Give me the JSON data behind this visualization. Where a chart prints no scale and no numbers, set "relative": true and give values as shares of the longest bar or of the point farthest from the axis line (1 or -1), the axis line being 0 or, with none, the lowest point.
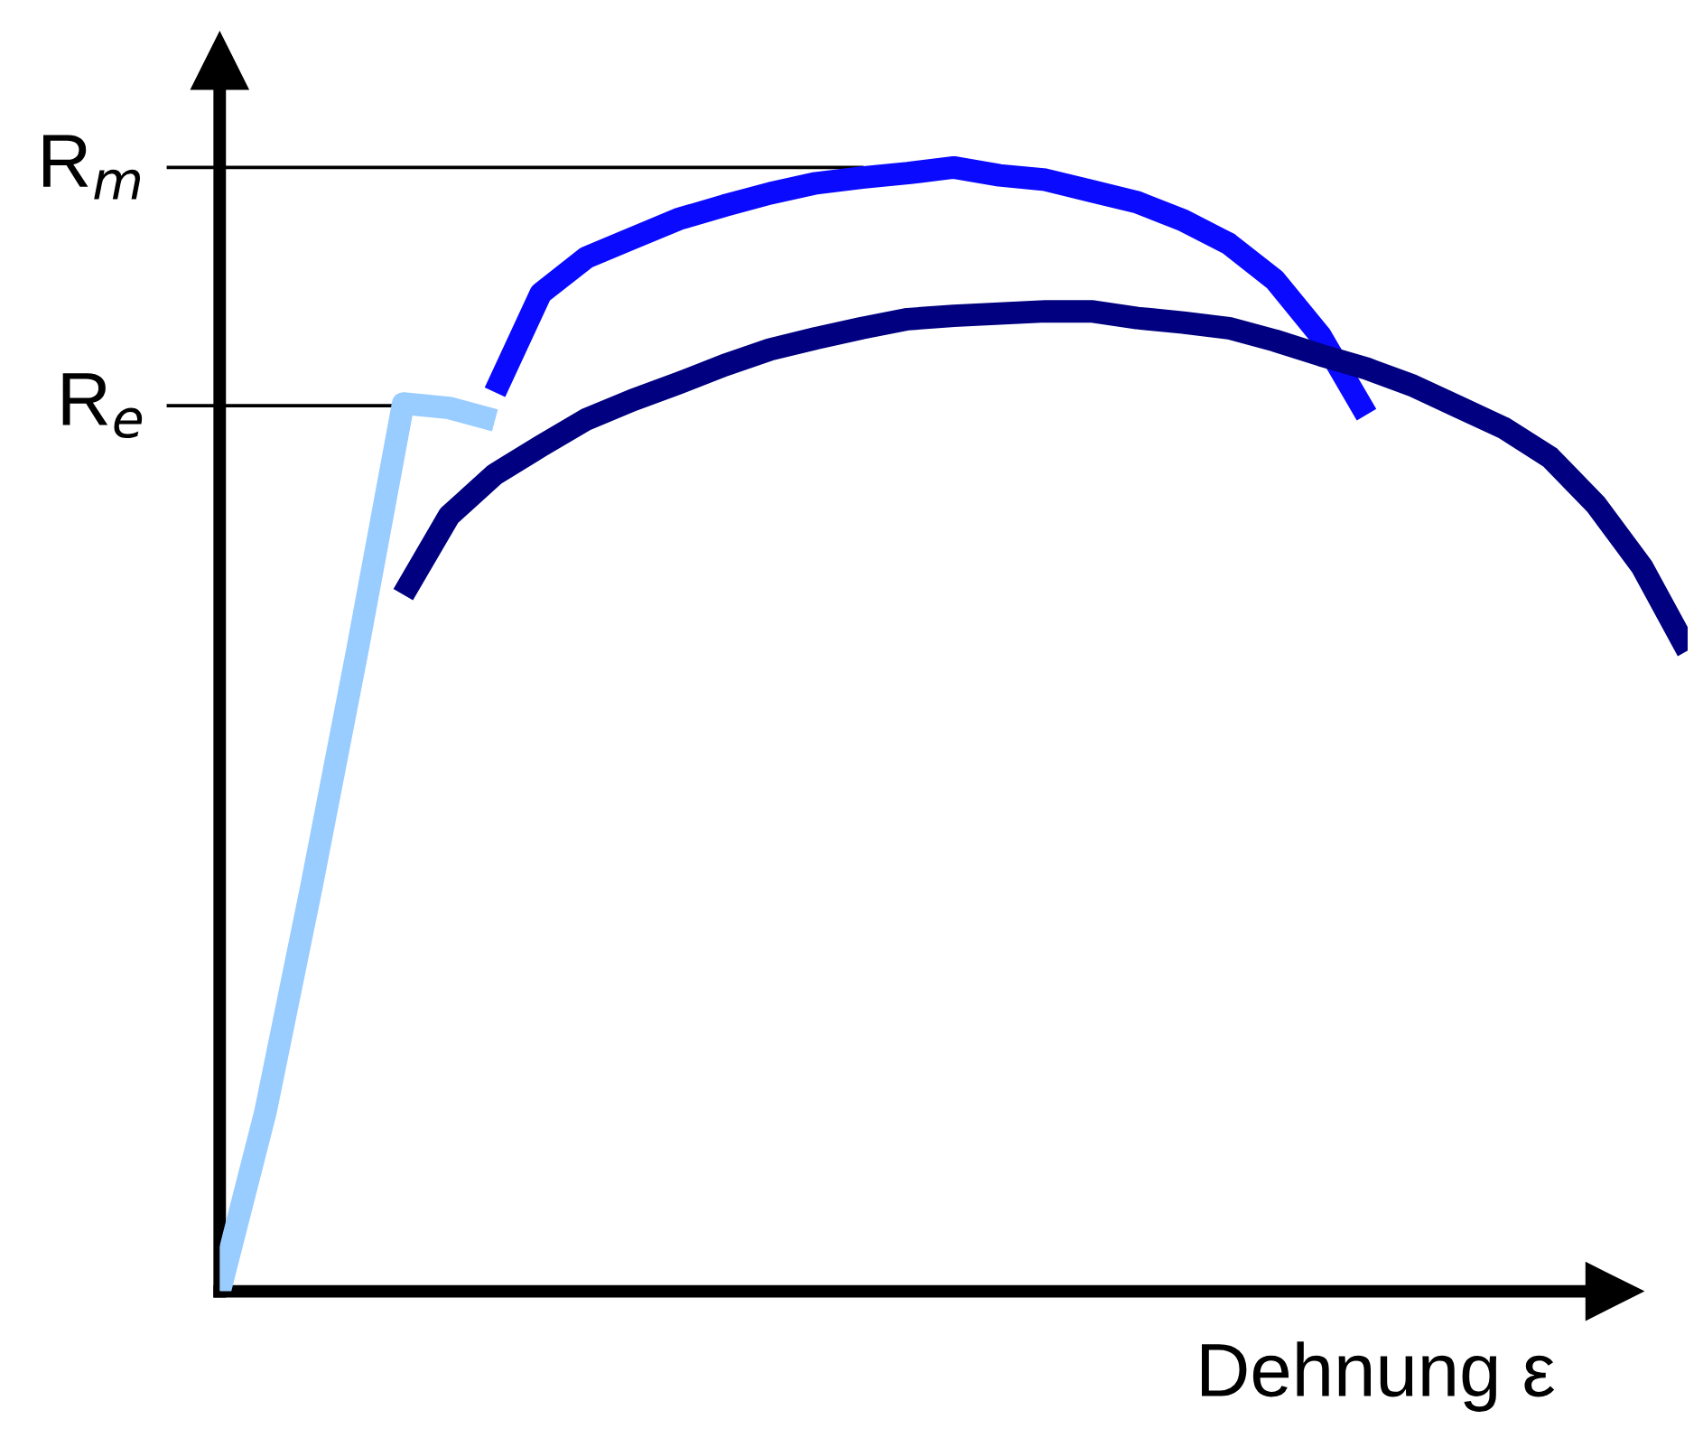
{
  "chart_data": {
    "type": "line",
    "relative": true,
    "xlabel": "Dehnung ε",
    "grid": false,
    "marker": "none",
    "line_style": "solid",
    "categories": [
      null,
      null,
      null,
      null,
      null,
      null,
      null,
      null,
      null,
      null,
      null,
      null,
      null,
      null,
      null,
      null,
      null,
      null,
      null,
      null,
      null,
      null,
      null,
      null,
      null,
      null,
      null,
      null,
      null,
      null,
      null,
      null,
      null
    ],
    "series": [
      {
        "color": "#99ccff",
        "values": [
          0.0,
          0.16,
          0.36,
          0.57,
          0.79,
          0.786,
          0.775,
          null,
          null,
          null,
          null,
          null,
          null,
          null,
          null,
          null,
          null,
          null,
          null,
          null,
          null,
          null,
          null,
          null,
          null,
          null,
          null,
          null,
          null,
          null,
          null,
          null,
          null
        ]
      },
      {
        "color": "#0a0aff",
        "values": [
          null,
          null,
          null,
          null,
          null,
          null,
          0.8,
          0.888,
          0.92,
          0.937,
          0.954,
          0.966,
          0.977,
          0.986,
          0.991,
          0.995,
          1.0,
          0.993,
          0.989,
          0.979,
          0.969,
          0.953,
          0.932,
          0.9,
          0.85,
          0.78,
          null,
          null,
          null,
          null,
          null,
          null,
          null
        ]
      },
      {
        "color": "#000080",
        "values": [
          null,
          null,
          null,
          null,
          0.62,
          0.69,
          0.727,
          0.752,
          0.776,
          0.793,
          0.808,
          0.824,
          0.838,
          0.848,
          0.857,
          0.865,
          0.868,
          0.87,
          0.872,
          0.872,
          0.866,
          0.862,
          0.857,
          0.846,
          0.833,
          0.821,
          0.806,
          0.787,
          0.768,
          0.742,
          0.7,
          0.645,
          0.57
        ]
      }
    ],
    "ref_lines": [
      {
        "axis": "y",
        "value": 1.0,
        "label": "R$_{m}$",
        "color": "#000000"
      },
      {
        "axis": "y",
        "value": 0.788,
        "label": "R$_{e}$",
        "color": "#000000"
      }
    ]
  }
}
